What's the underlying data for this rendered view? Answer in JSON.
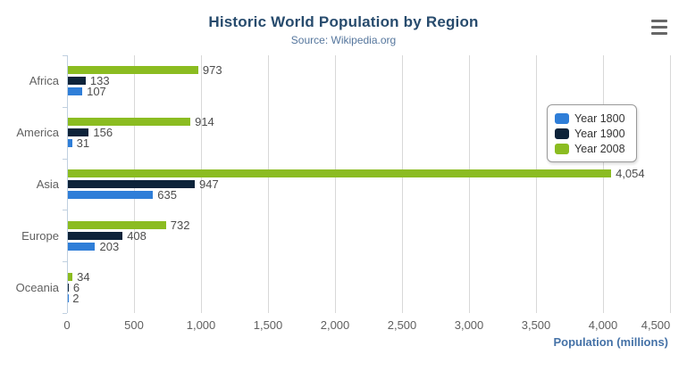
{
  "header": {
    "title": "Historic World Population by Region",
    "subtitle": "Source: Wikipedia.org"
  },
  "icons": {
    "menu": "hamburger-menu"
  },
  "colors": {
    "title": "#274b6d",
    "subtitle": "#55769d",
    "axis_title": "#4572a7",
    "axis_line": "#c0d0e0",
    "gridline": "#d8d8d8",
    "labels": "#606060",
    "data_labels": "#4d4d4d",
    "menu_icon": "#666666"
  },
  "chart_data": {
    "type": "bar",
    "orientation": "horizontal",
    "title": "Historic World Population by Region",
    "subtitle": "Source: Wikipedia.org",
    "categories": [
      "Africa",
      "America",
      "Asia",
      "Europe",
      "Oceania"
    ],
    "series": [
      {
        "name": "Year 1800",
        "color": "#2f7ed8",
        "values": [
          107,
          31,
          635,
          203,
          2
        ]
      },
      {
        "name": "Year 1900",
        "color": "#0d233a",
        "values": [
          133,
          156,
          947,
          408,
          6
        ]
      },
      {
        "name": "Year 2008",
        "color": "#8bbc21",
        "values": [
          973,
          914,
          4054,
          732,
          34
        ]
      }
    ],
    "bar_display_order_top_to_bottom": [
      "Year 2008",
      "Year 1900",
      "Year 1800"
    ],
    "xlabel": "Population (millions)",
    "ylabel": "",
    "xlim": [
      0,
      4500
    ],
    "xticks": [
      0,
      500,
      1000,
      1500,
      2000,
      2500,
      3000,
      3500,
      4000,
      4500
    ],
    "grid": true,
    "legend_position": "right",
    "data_labels_visible": true
  }
}
